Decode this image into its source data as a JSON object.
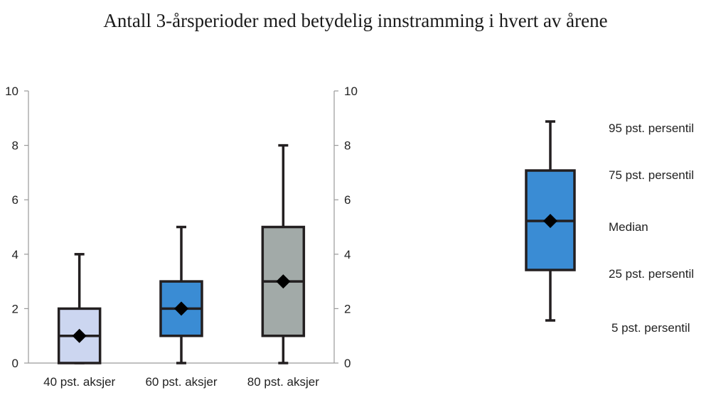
{
  "chart_data": {
    "type": "boxplot",
    "title": "Antall 3-årsperioder med betydelig innstramming i hvert av årene",
    "categories": [
      "40 pst. aksjer",
      "60 pst. aksjer",
      "80 pst. aksjer"
    ],
    "ylim": [
      0,
      10
    ],
    "yticks": [
      "0",
      "2",
      "4",
      "6",
      "8",
      "10"
    ],
    "boxes": [
      {
        "category": "40 pst. aksjer",
        "p5": 0,
        "p25": 0,
        "median": 1,
        "mean": 1,
        "p75": 2,
        "p95": 4,
        "fill": "#ccd6f0"
      },
      {
        "category": "60 pst. aksjer",
        "p5": 0,
        "p25": 1,
        "median": 2,
        "mean": 2,
        "p75": 3,
        "p95": 5,
        "fill": "#3a8cd4"
      },
      {
        "category": "80 pst. aksjer",
        "p5": 0,
        "p25": 1,
        "median": 3,
        "mean": 3,
        "p75": 5,
        "p95": 8,
        "fill": "#a2aaa8"
      }
    ],
    "legend": {
      "fill": "#3a8cd4",
      "labels": [
        "95 pst. persentil",
        "75 pst. persentil",
        "Median",
        "25 pst. persentil",
        "5 pst. persentil"
      ]
    }
  }
}
